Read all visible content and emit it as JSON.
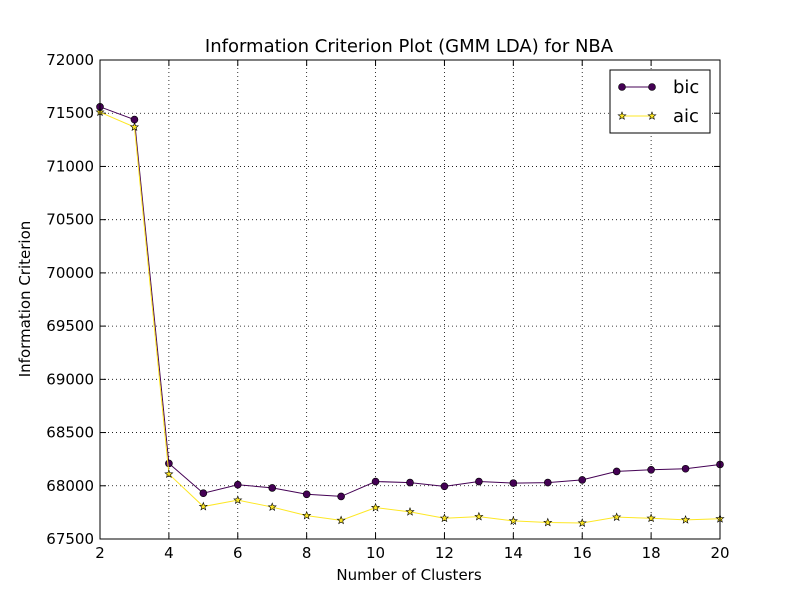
{
  "chart_data": {
    "type": "line",
    "title": "Information Criterion Plot (GMM LDA) for NBA",
    "xlabel": "Number of Clusters",
    "ylabel": "Information Criterion",
    "xlim": [
      2,
      20
    ],
    "ylim": [
      67500,
      72000
    ],
    "xticks": [
      2,
      4,
      6,
      8,
      10,
      12,
      14,
      16,
      18,
      20
    ],
    "yticks": [
      67500,
      68000,
      68500,
      69000,
      69500,
      70000,
      70500,
      71000,
      71500,
      72000
    ],
    "grid": true,
    "legend_position": "top-right",
    "x": [
      2,
      3,
      4,
      5,
      6,
      7,
      8,
      9,
      10,
      11,
      12,
      13,
      14,
      15,
      16,
      17,
      18,
      19,
      20
    ],
    "series": [
      {
        "name": "bic",
        "color": "#440154",
        "marker": "circle",
        "values": [
          71560,
          71440,
          68210,
          67930,
          68010,
          67980,
          67920,
          67900,
          68040,
          68030,
          67995,
          68040,
          68025,
          68030,
          68055,
          68135,
          68150,
          68160,
          68200
        ]
      },
      {
        "name": "aic",
        "color": "#fde725",
        "marker": "star",
        "values": [
          71510,
          71370,
          68110,
          67805,
          67865,
          67800,
          67720,
          67675,
          67795,
          67755,
          67695,
          67710,
          67670,
          67655,
          67650,
          67705,
          67695,
          67680,
          67690
        ]
      }
    ]
  }
}
